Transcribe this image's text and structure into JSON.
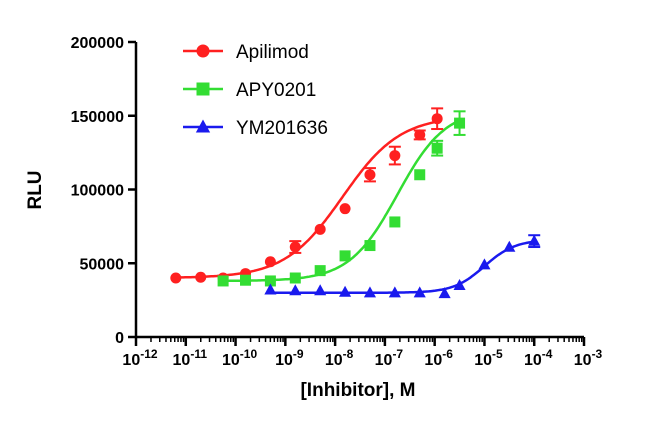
{
  "chart_data": {
    "type": "scatter",
    "title": "",
    "xlabel": "[Inhibitor], M",
    "ylabel": "RLU",
    "xscale": "log10",
    "xlim_exponents": [
      -12,
      -3
    ],
    "x_tick_exponents": [
      -12,
      -11,
      -10,
      -9,
      -8,
      -7,
      -6,
      -5,
      -4,
      -3
    ],
    "x_tick_base": "10",
    "ylim": [
      0,
      200000
    ],
    "y_ticks": [
      0,
      50000,
      100000,
      150000,
      200000
    ],
    "y_tick_labels": [
      "0",
      "50000",
      "100000",
      "150000",
      "200000"
    ],
    "grid": false,
    "legend_position": "top-left",
    "series": [
      {
        "name": "Apilimod",
        "color": "#ff2020",
        "marker": "circle",
        "x_log": [
          -11.2,
          -10.7,
          -10.25,
          -9.8,
          -9.3,
          -8.8,
          -8.3,
          -7.8,
          -7.3,
          -6.8,
          -6.3,
          -5.95
        ],
        "y": [
          40000,
          40500,
          40000,
          43000,
          51000,
          61000,
          73000,
          87000,
          110000,
          123000,
          137000,
          148000
        ],
        "err": [
          0,
          0,
          0,
          0,
          0,
          4000,
          0,
          0,
          4500,
          6000,
          3000,
          7000
        ],
        "fit": {
          "bottom": 40000,
          "top": 150000,
          "log_ec50": -7.85,
          "hill": 0.75,
          "x_range": [
            -11.2,
            -5.95
          ]
        }
      },
      {
        "name": "APY0201",
        "color": "#33dd33",
        "marker": "square",
        "x_log": [
          -10.25,
          -9.8,
          -9.3,
          -8.8,
          -8.3,
          -7.8,
          -7.3,
          -6.8,
          -6.3,
          -5.95,
          -5.5
        ],
        "y": [
          38000,
          38500,
          38000,
          40000,
          45000,
          55000,
          62000,
          78000,
          110000,
          128000,
          145000
        ],
        "err": [
          0,
          0,
          0,
          0,
          0,
          0,
          0,
          0,
          0,
          5000,
          8000
        ],
        "fit": {
          "bottom": 38000,
          "top": 155000,
          "log_ec50": -6.75,
          "hill": 0.9,
          "x_range": [
            -10.25,
            -5.5
          ]
        }
      },
      {
        "name": "YM201636",
        "color": "#1a1aee",
        "marker": "triangle",
        "x_log": [
          -9.3,
          -8.8,
          -8.3,
          -7.8,
          -7.3,
          -6.8,
          -6.3,
          -5.8,
          -5.5,
          -5.0,
          -4.5,
          -4.0
        ],
        "y": [
          32000,
          31500,
          31500,
          30500,
          30000,
          30000,
          30000,
          29500,
          35000,
          49000,
          61000,
          65000
        ],
        "err": [
          0,
          0,
          0,
          0,
          0,
          0,
          0,
          0,
          0,
          0,
          0,
          4000
        ],
        "fit": {
          "bottom": 30000,
          "top": 66000,
          "log_ec50": -5.0,
          "hill": 1.4,
          "x_range": [
            -9.3,
            -4.0
          ]
        }
      }
    ]
  }
}
